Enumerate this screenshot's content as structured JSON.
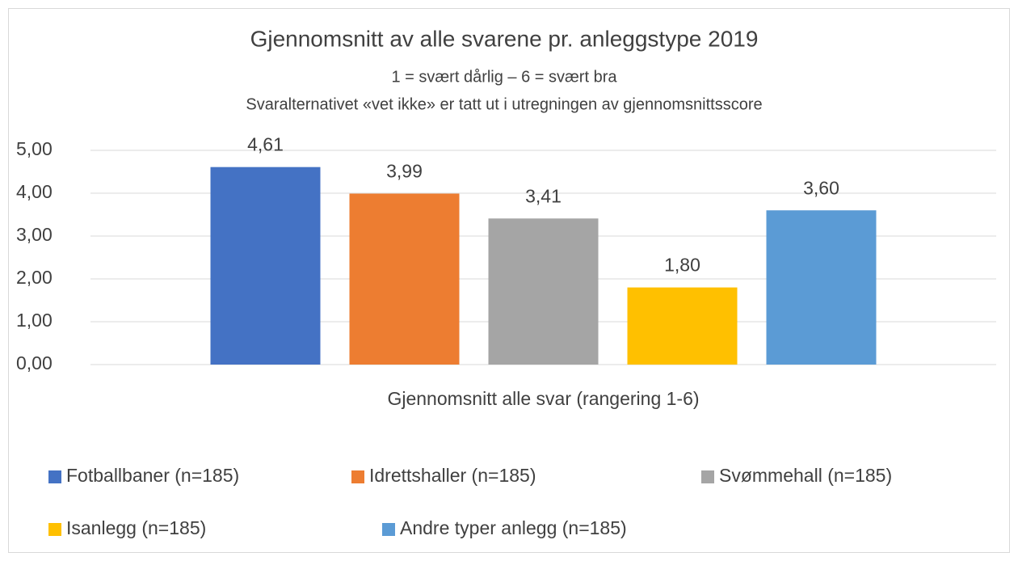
{
  "chart_data": {
    "type": "bar",
    "title": "Gjennomsnitt av alle svarene pr. anleggstype 2019",
    "subtitles": [
      "1 = svært dårlig – 6 = svært bra",
      "Svaralternativet «vet ikke» er tatt ut i utregningen av gjennomsnittsscore"
    ],
    "categories": [
      "Gjennomsnitt alle svar (rangering 1-6)"
    ],
    "series": [
      {
        "name": "Fotballbaner (n=185)",
        "color": "#4472c4",
        "values": [
          4.61
        ],
        "value_labels": [
          "4,61"
        ]
      },
      {
        "name": "Idrettshaller (n=185)",
        "color": "#ed7d31",
        "values": [
          3.99
        ],
        "value_labels": [
          "3,99"
        ]
      },
      {
        "name": "Svømmehall (n=185)",
        "color": "#a5a5a5",
        "values": [
          3.41
        ],
        "value_labels": [
          "3,41"
        ]
      },
      {
        "name": "Isanlegg (n=185)",
        "color": "#ffc000",
        "values": [
          1.8
        ],
        "value_labels": [
          "1,80"
        ]
      },
      {
        "name": "Andre typer anlegg (n=185)",
        "color": "#5b9bd5",
        "values": [
          3.6
        ],
        "value_labels": [
          "3,60"
        ]
      }
    ],
    "ylim": [
      0,
      5
    ],
    "yticks": [
      {
        "value": 0,
        "label": "0,00"
      },
      {
        "value": 1,
        "label": "1,00"
      },
      {
        "value": 2,
        "label": "2,00"
      },
      {
        "value": 3,
        "label": "3,00"
      },
      {
        "value": 4,
        "label": "4,00"
      },
      {
        "value": 5,
        "label": "5,00"
      }
    ],
    "grid": true,
    "legend": "bottom"
  }
}
